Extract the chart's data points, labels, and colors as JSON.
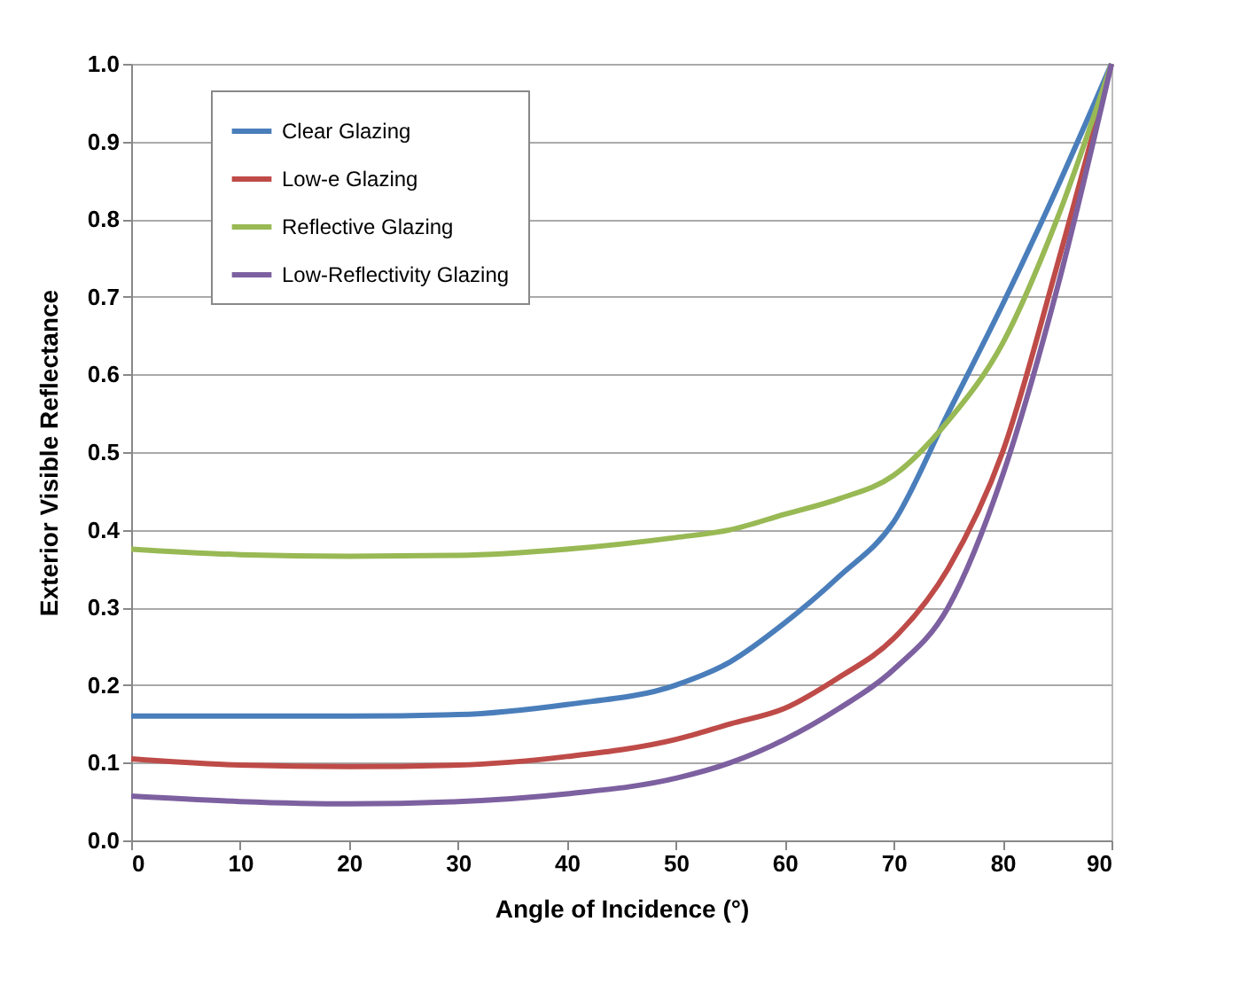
{
  "chart_data": {
    "type": "line",
    "xlabel": "Angle of Incidence (°)",
    "ylabel": "Exterior Visible Reflectance",
    "x": [
      0,
      10,
      20,
      30,
      40,
      50,
      55,
      60,
      65,
      70,
      75,
      80,
      85,
      90
    ],
    "series": [
      {
        "name": "Clear Glazing",
        "color": "#4a7ebb",
        "values": [
          0.16,
          0.16,
          0.16,
          0.162,
          0.175,
          0.2,
          0.23,
          0.28,
          0.34,
          0.41,
          0.55,
          0.69,
          0.84,
          1.0
        ]
      },
      {
        "name": "Low-e Glazing",
        "color": "#be4b48",
        "values": [
          0.105,
          0.097,
          0.095,
          0.097,
          0.108,
          0.13,
          0.15,
          0.17,
          0.21,
          0.26,
          0.35,
          0.5,
          0.74,
          1.0
        ]
      },
      {
        "name": "Reflective Glazing",
        "color": "#98b954",
        "values": [
          0.375,
          0.368,
          0.366,
          0.367,
          0.375,
          0.39,
          0.4,
          0.42,
          0.44,
          0.47,
          0.54,
          0.64,
          0.8,
          1.0
        ]
      },
      {
        "name": "Low-Reflectivity Glazing",
        "color": "#7d60a0",
        "values": [
          0.057,
          0.05,
          0.047,
          0.05,
          0.06,
          0.08,
          0.1,
          0.13,
          0.17,
          0.22,
          0.3,
          0.47,
          0.71,
          1.0
        ]
      }
    ],
    "xlim": [
      0,
      90
    ],
    "xticks": [
      0,
      10,
      20,
      30,
      40,
      50,
      60,
      70,
      80,
      90
    ],
    "ylim": [
      0,
      1.0
    ],
    "yticks": [
      {
        "value": 0,
        "label": "0.0"
      },
      {
        "value": 0.1,
        "label": "0.1"
      },
      {
        "value": 0.2,
        "label": "0.2"
      },
      {
        "value": 0.3,
        "label": "0.3"
      },
      {
        "value": 0.4,
        "label": "0.4"
      },
      {
        "value": 0.5,
        "label": "0.5"
      },
      {
        "value": 0.6,
        "label": "0.6"
      },
      {
        "value": 0.7,
        "label": "0.7"
      },
      {
        "value": 0.8,
        "label": "0.8"
      },
      {
        "value": 0.9,
        "label": "0.9"
      },
      {
        "value": 1.0,
        "label": "1.0"
      }
    ],
    "grid": "y",
    "legend": "top left",
    "marker": "none",
    "line_style": "solid"
  }
}
